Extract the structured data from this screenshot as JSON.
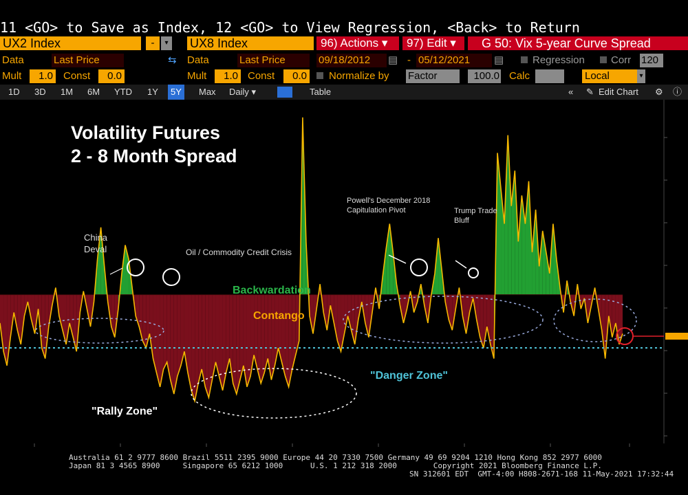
{
  "command_line": "11 <GO> to Save as Index, 12 <GO> to View Regression, <Back> to Return",
  "header": {
    "security1": "UX2 Index",
    "security2": "UX8 Index",
    "actions": "96) Actions ▾",
    "edit": "97) Edit ▾",
    "chart_title": "G 50: Vix 5-year Curve Spread"
  },
  "row2": {
    "data_label": "Data",
    "data_value": "Last Price",
    "data2_label": "Data",
    "data2_value": "Last Price",
    "start_date": "09/18/2012",
    "end_date": "05/12/2021",
    "regression_label": "Regression",
    "corr_label": "Corr",
    "corr_value": "120"
  },
  "row3": {
    "mult_label": "Mult",
    "mult_value": "1.0",
    "const_label": "Const",
    "const_value": "0.0",
    "mult2_label": "Mult",
    "mult2_value": "1.0",
    "const2_label": "Const",
    "const2_value": "0.0",
    "normalize_label": "Normalize by",
    "normalize_value": "Factor",
    "normalize_num": "100.0",
    "calc_label": "Calc",
    "local_value": "Local"
  },
  "toolbar": {
    "periods": [
      "1D",
      "3D",
      "1M",
      "6M",
      "YTD",
      "1Y",
      "5Y",
      "Max"
    ],
    "selected": "5Y",
    "frequency": "Daily ▾",
    "table": "Table",
    "edit_chart": "Edit Chart"
  },
  "colors": {
    "orange": "#f7a600",
    "contango_fill": "#7a0f1c",
    "backwardation_fill": "#22a032",
    "line": "#f5b800",
    "danger_line": "#4fc3d8"
  },
  "chart_data": {
    "type": "area",
    "title_line1": "Volatility Futures",
    "title_line2": "2 - 8 Month Spread",
    "baseline": 0,
    "danger_level": -1.5,
    "ylim": [
      -4,
      5.5
    ],
    "series": [
      {
        "values": [
          -0.8,
          -1.6,
          -2.0,
          -1.2,
          -0.5,
          -1.0,
          -1.4,
          -0.6,
          -0.2,
          -0.7,
          -1.1,
          -0.4,
          -1.5,
          -1.8,
          -0.9,
          -0.3,
          0.2,
          -0.6,
          -1.0,
          -1.4,
          -0.8,
          -1.2,
          -1.6,
          -0.5,
          0.1,
          -0.4,
          -0.9,
          -0.2,
          1.0,
          1.9,
          0.8,
          -0.2,
          -0.9,
          -1.2,
          -0.4,
          0.6,
          1.4,
          1.0,
          0.2,
          -0.6,
          -0.9,
          -1.3,
          -1.5,
          -1.1,
          -1.8,
          -2.2,
          -2.6,
          -2.1,
          -1.9,
          -2.4,
          -2.8,
          -2.3,
          -2.0,
          -1.6,
          -2.2,
          -2.7,
          -3.0,
          -2.5,
          -2.1,
          -2.6,
          -2.9,
          -2.4,
          -1.9,
          -2.3,
          -2.7,
          -2.2,
          -1.8,
          -2.5,
          -2.8,
          -2.4,
          -2.0,
          -2.6,
          -2.3,
          -1.7,
          -2.1,
          -2.5,
          -2.2,
          -1.8,
          -2.4,
          -2.0,
          -1.5,
          -1.9,
          -2.3,
          -2.6,
          -2.1,
          -1.7,
          -1.3,
          5.0,
          1.5,
          -0.6,
          -1.1,
          -0.4,
          0.3,
          -0.5,
          -1.0,
          -0.3,
          -0.8,
          -1.3,
          -1.6,
          -1.1,
          -0.6,
          -1.0,
          -1.4,
          -0.7,
          -0.2,
          -0.8,
          -1.2,
          -0.5,
          0.2,
          -0.4,
          0.5,
          1.3,
          2.0,
          1.2,
          0.3,
          -0.3,
          -0.8,
          -0.4,
          0.1,
          -0.5,
          -0.2,
          0.3,
          -0.3,
          -0.8,
          0.0,
          0.6,
          1.6,
          0.7,
          -0.2,
          -0.7,
          -1.0,
          -0.4,
          0.2,
          -0.6,
          -1.1,
          -0.5,
          -0.1,
          -0.7,
          -1.2,
          -1.5,
          -0.9,
          -1.4,
          -1.8,
          4.0,
          3.0,
          2.0,
          4.5,
          2.5,
          3.5,
          1.5,
          2.8,
          2.0,
          3.2,
          1.2,
          2.4,
          0.8,
          1.8,
          1.2,
          0.6,
          2.0,
          1.0,
          0.2,
          -0.5,
          0.4,
          -0.2,
          -0.6,
          0.3,
          -0.4,
          -0.1,
          -0.8,
          -0.3,
          0.2,
          -0.4,
          -1.0,
          -1.8,
          -0.6,
          -1.2,
          -0.8,
          -1.4,
          -1.1
        ]
      }
    ],
    "annotations": [
      "China Deval",
      "Oil / Commodity Credit Crisis",
      "Backwardation",
      "Contango",
      "Powell's December 2018 Capitulation Pivot",
      "Trump Trade Bluff",
      "\"Danger Zone\"",
      "\"Rally Zone\""
    ]
  },
  "footer": {
    "line1": "Australia 61 2 9777 8600 Brazil 5511 2395 9000 Europe 44 20 7330 7500 Germany 49 69 9204 1210 Hong Kong 852 2977 6000",
    "line2": "Japan 81 3 4565 8900     Singapore 65 6212 1000      U.S. 1 212 318 2000        Copyright 2021 Bloomberg Finance L.P.",
    "line3": "SN 312601 EDT  GMT-4:00 H808-2671-168 11-May-2021 17:32:44"
  }
}
